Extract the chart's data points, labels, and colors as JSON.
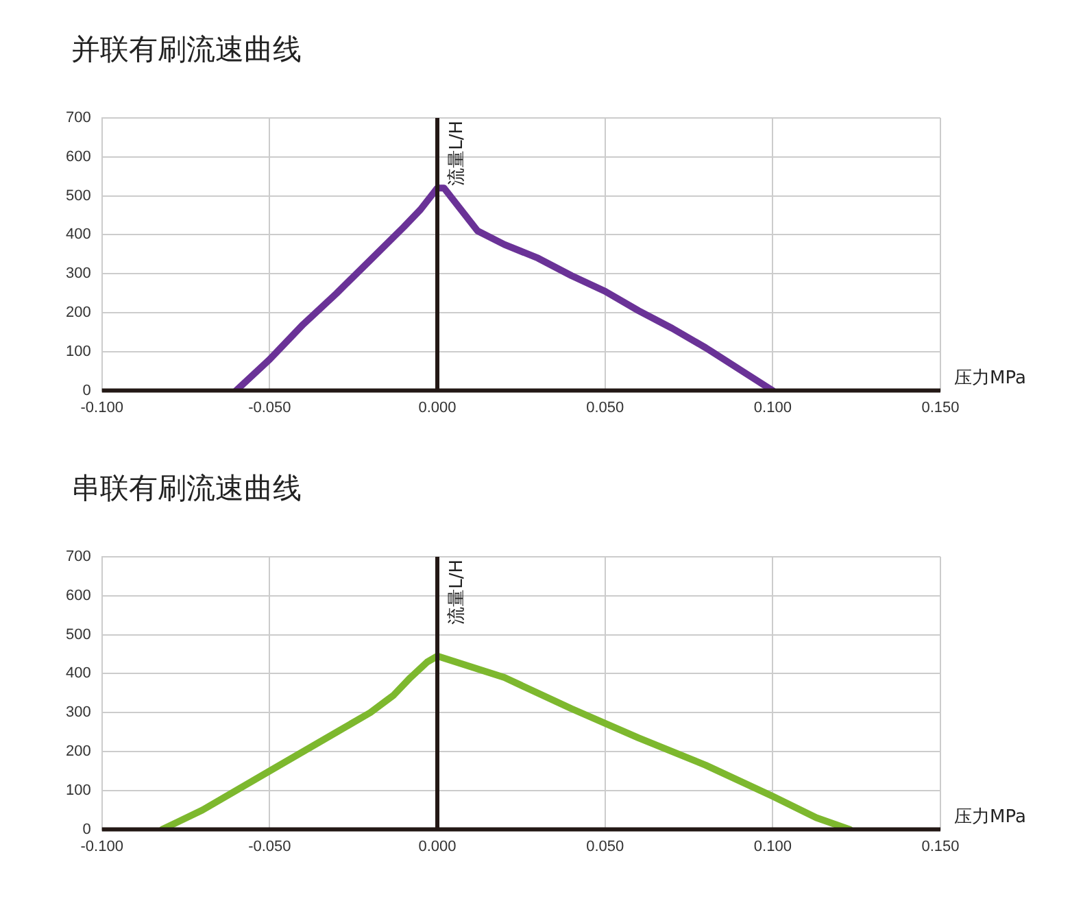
{
  "chart_data": [
    {
      "type": "line",
      "title": "并联有刷流速曲线",
      "xlabel": "压力MPa",
      "ylabel": "流量L/H",
      "x": [
        -0.06,
        -0.05,
        -0.04,
        -0.03,
        -0.02,
        -0.01,
        -0.005,
        0,
        0.002,
        0.012,
        0.02,
        0.03,
        0.04,
        0.05,
        0.06,
        0.07,
        0.08,
        0.09,
        0.1
      ],
      "series": [
        {
          "color": "#6a3297",
          "values": [
            0,
            80,
            170,
            250,
            335,
            420,
            465,
            520,
            520,
            410,
            375,
            340,
            295,
            255,
            205,
            160,
            110,
            55,
            0
          ]
        }
      ],
      "xlim": [
        -0.1,
        0.15
      ],
      "xticks": [
        {
          "value": -0.1,
          "label": "-0.100"
        },
        {
          "value": -0.05,
          "label": "-0.050"
        },
        {
          "value": 0,
          "label": "0.000"
        },
        {
          "value": 0.05,
          "label": "0.050"
        },
        {
          "value": 0.1,
          "label": "0.100"
        },
        {
          "value": 0.15,
          "label": "0.150"
        }
      ],
      "ylim": [
        0,
        700
      ],
      "yticks": [
        0,
        100,
        200,
        300,
        400,
        500,
        600,
        700
      ],
      "grid": true,
      "legend": false,
      "marker": "none",
      "line_style": "solid"
    },
    {
      "type": "line",
      "title": "串联有刷流速曲线",
      "xlabel": "压力MPa",
      "ylabel": "流量L/H",
      "x": [
        -0.082,
        -0.07,
        -0.05,
        -0.03,
        -0.02,
        -0.013,
        -0.008,
        -0.003,
        0,
        0.02,
        0.04,
        0.06,
        0.08,
        0.1,
        0.113,
        0.123
      ],
      "series": [
        {
          "color": "#7db82e",
          "values": [
            0,
            50,
            150,
            250,
            300,
            345,
            390,
            430,
            445,
            390,
            310,
            235,
            165,
            85,
            30,
            0
          ]
        }
      ],
      "xlim": [
        -0.1,
        0.15
      ],
      "xticks": [
        {
          "value": -0.1,
          "label": "-0.100"
        },
        {
          "value": -0.05,
          "label": "-0.050"
        },
        {
          "value": 0,
          "label": "0.000"
        },
        {
          "value": 0.05,
          "label": "0.050"
        },
        {
          "value": 0.1,
          "label": "0.100"
        },
        {
          "value": 0.15,
          "label": "0.150"
        }
      ],
      "ylim": [
        0,
        700
      ],
      "yticks": [
        0,
        100,
        200,
        300,
        400,
        500,
        600,
        700
      ],
      "grid": true,
      "legend": false,
      "marker": "none",
      "line_style": "solid"
    }
  ]
}
